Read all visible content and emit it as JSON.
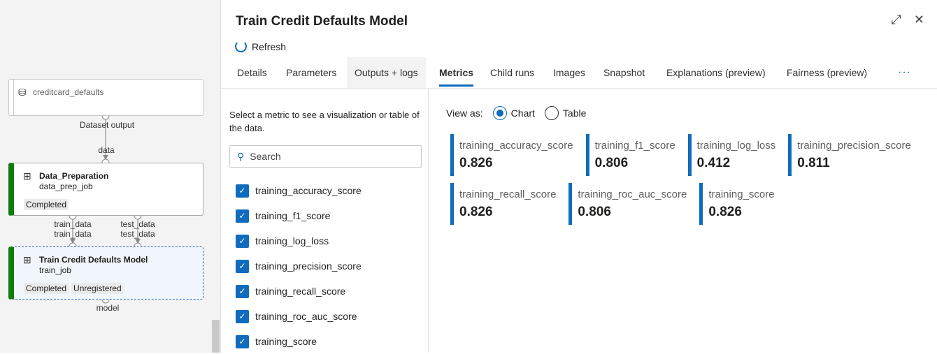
{
  "pipeline": {
    "dataset": {
      "name": "creditcard_defaults",
      "output": "Dataset output"
    },
    "edge_labels": {
      "data": "data",
      "train_out": "train_data",
      "train_in": "train_data",
      "test_out": "test_data",
      "test_in": "test_data",
      "model": "model"
    },
    "nodes": [
      {
        "title": "Data_Preparation",
        "subtitle": "data_prep_job",
        "badges": [
          "Completed"
        ]
      },
      {
        "title": "Train Credit Defaults Model",
        "subtitle": "train_job",
        "badges": [
          "Completed",
          "Unregistered"
        ]
      }
    ]
  },
  "panel": {
    "title": "Train Credit Defaults Model",
    "refresh": "Refresh",
    "tabs": [
      "Details",
      "Parameters",
      "Outputs + logs",
      "Metrics",
      "Child runs",
      "Images",
      "Snapshot",
      "Explanations (preview)",
      "Fairness (preview)"
    ],
    "active_tab": "Metrics",
    "more": "···",
    "hint": "Select a metric to see a visualization or table of the data.",
    "search_placeholder": "Search",
    "metric_checks": [
      "training_accuracy_score",
      "training_f1_score",
      "training_log_loss",
      "training_precision_score",
      "training_recall_score",
      "training_roc_auc_score",
      "training_score"
    ],
    "view_as": {
      "label": "View as:",
      "options": [
        "Chart",
        "Table"
      ],
      "selected": "Chart"
    },
    "accent": "#0f6cbd",
    "metric_rows": [
      [
        {
          "name": "training_accuracy_score",
          "value": "0.826"
        },
        {
          "name": "training_f1_score",
          "value": "0.806"
        },
        {
          "name": "training_log_loss",
          "value": "0.412"
        },
        {
          "name": "training_precision_score",
          "value": "0.811"
        }
      ],
      [
        {
          "name": "training_recall_score",
          "value": "0.826"
        },
        {
          "name": "training_roc_auc_score",
          "value": "0.806"
        },
        {
          "name": "training_score",
          "value": "0.826"
        }
      ]
    ]
  }
}
